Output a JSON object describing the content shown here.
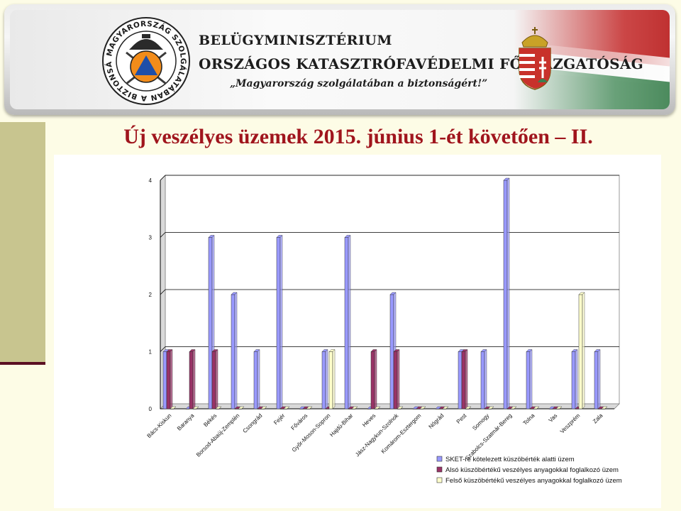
{
  "header": {
    "org_line1": "BELÜGYMINISZTÉRIUM",
    "org_line2": "ORSZÁGOS KATASZTRÓFAVÉDELMI FŐIGAZGATÓSÁG",
    "motto": "„Magyarország szolgálatában a biztonságért!”",
    "logo_ring_text": "MAGYARORSZÁG SZOLGÁLATÁBAN A BIZTONSÁGÉRT",
    "logo_icon": "disaster-management-emblem",
    "coat_icon": "hungarian-coat-of-arms"
  },
  "slide": {
    "title": "Új veszélyes üzemek 2015. június 1-ét követően – II."
  },
  "colors": {
    "title": "#a0151d",
    "series1": "#9999ff",
    "series2": "#993366",
    "series3": "#ffffcc"
  },
  "chart_data": {
    "type": "bar",
    "title": "",
    "xlabel": "",
    "ylabel": "",
    "ylim": [
      0,
      4
    ],
    "yticks": [
      "0",
      "1",
      "2",
      "3",
      "4"
    ],
    "grid": true,
    "legend_position": "bottom-right",
    "categories": [
      "Bács-Kiskun",
      "Baranya",
      "Békés",
      "Borsod-Abaúj-Zemplén",
      "Csongrád",
      "Fejér",
      "Főváros",
      "Győr-Moson-Sopron",
      "Hajdú-Bihar",
      "Heves",
      "Jász-Nagykun-Szolnok",
      "Komárom-Esztergom",
      "Nógrád",
      "Pest",
      "Somogy",
      "Szabolcs-Szatmár-Bereg",
      "Tolna",
      "Vas",
      "Veszprém",
      "Zala"
    ],
    "series": [
      {
        "name": "SKET-re kötelezett küszöbérték alatti üzem",
        "values": [
          1,
          0,
          3,
          2,
          1,
          3,
          0,
          1,
          3,
          0,
          2,
          0,
          0,
          1,
          1,
          4,
          1,
          0,
          1,
          1
        ]
      },
      {
        "name": "Alsó küszöbértékű veszélyes anyagokkal foglalkozó üzem",
        "values": [
          1,
          1,
          1,
          0,
          0,
          0,
          0,
          0,
          0,
          1,
          1,
          0,
          0,
          1,
          0,
          0,
          0,
          0,
          0,
          0
        ]
      },
      {
        "name": "Felső küszöbértékű veszélyes anyagokkal foglalkozó üzem",
        "values": [
          0,
          0,
          0,
          0,
          0,
          0,
          0,
          1,
          0,
          0,
          0,
          0,
          0,
          0,
          0,
          0,
          0,
          0,
          2,
          0
        ]
      }
    ]
  }
}
